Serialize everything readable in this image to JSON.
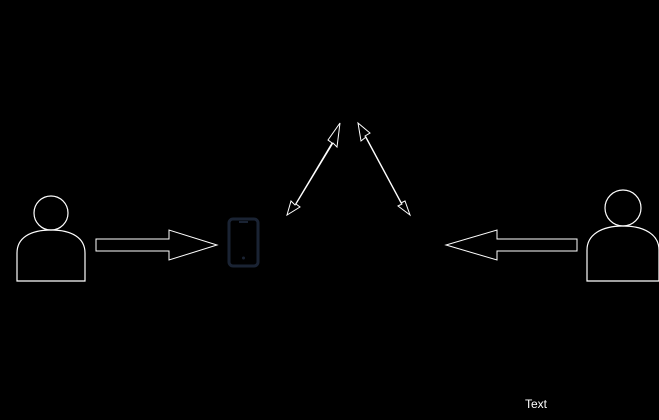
{
  "colors": {
    "background": "#000000",
    "stroke": "#ffffff",
    "phone": "#1a2333"
  },
  "icons": {
    "left_person": "person-icon",
    "right_person": "person-icon",
    "phone": "mobile-phone-icon"
  },
  "diagram": {
    "caption": "Text"
  }
}
